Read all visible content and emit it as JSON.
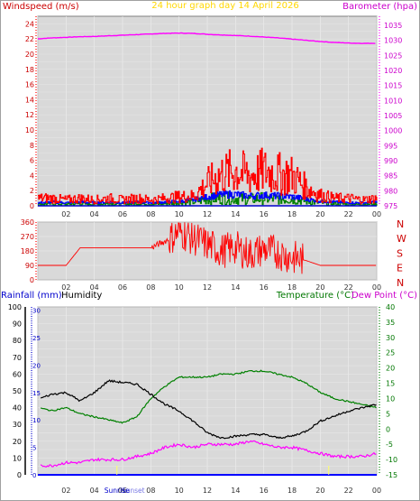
{
  "title": "24 hour graph day  14 April 2026",
  "wind_panel": {
    "left_label": "Windspeed (m/s)",
    "right_label": "Barometer (hpa)",
    "ylim_left": [
      0,
      25
    ],
    "ylim_right": [
      975,
      1038
    ],
    "left_ticks": [
      "0",
      "2",
      "4",
      "6",
      "8",
      "10",
      "12",
      "14",
      "16",
      "18",
      "20",
      "22",
      "24"
    ],
    "right_ticks": [
      "975",
      "980",
      "985",
      "990",
      "995",
      "1000",
      "1005",
      "1010",
      "1015",
      "1020",
      "1025",
      "1030",
      "1035"
    ],
    "x_ticks": [
      "02",
      "04",
      "06",
      "08",
      "10",
      "12",
      "14",
      "16",
      "18",
      "20",
      "22",
      "00"
    ]
  },
  "direction_panel": {
    "ylim": [
      0,
      360
    ],
    "ticks": [
      "0",
      "90",
      "180",
      "270",
      "360"
    ],
    "compass": [
      "N",
      "W",
      "S",
      "E",
      "N"
    ],
    "x_ticks": [
      "02",
      "04",
      "06",
      "08",
      "10",
      "12",
      "14",
      "16",
      "18",
      "20",
      "22",
      "00"
    ]
  },
  "temp_panel": {
    "rain_label": "Rainfall (mm)",
    "humidity_label": "Humidity",
    "temp_label": "Temperature (°C)",
    "dew_label": "Dew Point (°C)",
    "humidity_ticks": [
      "0",
      "10",
      "20",
      "30",
      "40",
      "50",
      "60",
      "70",
      "80",
      "90",
      "100"
    ],
    "rain_ticks": [
      "0",
      "5",
      "10",
      "15",
      "20",
      "25",
      "30"
    ],
    "temp_ticks": [
      "-15",
      "-10",
      "-5",
      "0",
      "5",
      "10",
      "15",
      "20",
      "25",
      "30",
      "35",
      "40"
    ],
    "x_ticks": [
      "02",
      "04",
      "06",
      "08",
      "10",
      "12",
      "14",
      "16",
      "18",
      "20",
      "22",
      "00"
    ],
    "sunrise_label": "Sunrise",
    "sunset_label": "Sunset"
  },
  "colors": {
    "wind": "#ff0000",
    "gust_avg": "#0000ff",
    "wind_green": "#008000",
    "barometer": "#ff00ff",
    "direction": "#ff0000",
    "humidity": "#000000",
    "temperature": "#008000",
    "dewpoint": "#ff00ff",
    "rain": "#0000ff",
    "title": "#ffd700"
  },
  "chart_data": [
    {
      "type": "line",
      "x_hours": [
        0,
        1,
        2,
        3,
        4,
        5,
        6,
        7,
        8,
        9,
        10,
        11,
        12,
        13,
        14,
        15,
        16,
        17,
        18,
        19,
        20,
        21,
        22,
        23,
        24
      ],
      "series": [
        {
          "values": [
            1030.5,
            1030.8,
            1031.0,
            1031.2,
            1031.3,
            1031.5,
            1031.7,
            1031.9,
            1032.1,
            1032.3,
            1032.4,
            1032.3,
            1032.0,
            1031.8,
            1031.6,
            1031.4,
            1031.1,
            1030.8,
            1030.4,
            1030.0,
            1029.6,
            1029.3,
            1029.1,
            1029.0,
            1029.0
          ]
        },
        {
          "values": [
            1.0,
            1.0,
            0.8,
            1.0,
            0.8,
            1.0,
            0.8,
            1.0,
            0.8,
            1.0,
            1.2,
            1.3,
            3.0,
            4.2,
            4.6,
            4.0,
            4.6,
            4.2,
            4.0,
            2.4,
            1.4,
            1.0,
            1.0,
            0.8,
            1.0
          ]
        },
        {
          "values": [
            0.4,
            0.5,
            0.4,
            0.5,
            0.4,
            0.5,
            0.4,
            0.5,
            0.4,
            0.5,
            0.6,
            0.8,
            1.2,
            1.5,
            1.5,
            1.3,
            1.4,
            1.3,
            1.2,
            0.9,
            0.6,
            0.5,
            0.4,
            0.4,
            0.5
          ]
        },
        {
          "values": [
            0.2,
            0.3,
            0.2,
            0.3,
            0.2,
            0.3,
            0.2,
            0.3,
            0.2,
            0.3,
            0.4,
            0.5,
            0.9,
            1.0,
            1.0,
            0.9,
            1.0,
            0.9,
            0.9,
            0.6,
            0.4,
            0.3,
            0.2,
            0.2,
            0.3
          ]
        }
      ]
    },
    {
      "type": "line",
      "x_hours": [
        0,
        1,
        2,
        3,
        4,
        5,
        6,
        7,
        8,
        9,
        10,
        11,
        12,
        13,
        14,
        15,
        16,
        17,
        18,
        19,
        20,
        21,
        22,
        23,
        24
      ],
      "series": [
        {
          "values": [
            90,
            90,
            90,
            200,
            200,
            200,
            200,
            200,
            200,
            240,
            300,
            260,
            220,
            180,
            200,
            160,
            190,
            170,
            140,
            120,
            90,
            90,
            90,
            90,
            90
          ]
        }
      ]
    },
    {
      "type": "line",
      "x_hours": [
        0,
        1,
        2,
        3,
        4,
        5,
        6,
        7,
        8,
        9,
        10,
        11,
        12,
        13,
        14,
        15,
        16,
        17,
        18,
        19,
        20,
        21,
        22,
        23,
        24
      ],
      "series": [
        {
          "values": [
            45,
            48,
            49,
            44,
            49,
            56,
            55,
            54,
            48,
            42,
            38,
            32,
            25,
            22,
            23,
            24,
            24,
            22,
            23,
            26,
            32,
            35,
            38,
            40,
            42
          ]
        },
        {
          "values": [
            7,
            6,
            7,
            5,
            4,
            3,
            2,
            4,
            10,
            14,
            17,
            17,
            17,
            18,
            18,
            19,
            19,
            18,
            17,
            15,
            12,
            10,
            9,
            8,
            7
          ]
        },
        {
          "values": [
            -12,
            -12,
            -11,
            -11,
            -10,
            -10,
            -10,
            -9,
            -8,
            -6,
            -5,
            -6,
            -5,
            -5,
            -5,
            -4,
            -5,
            -6,
            -6,
            -7,
            -8,
            -9,
            -9,
            -9,
            -8
          ]
        }
      ]
    }
  ]
}
